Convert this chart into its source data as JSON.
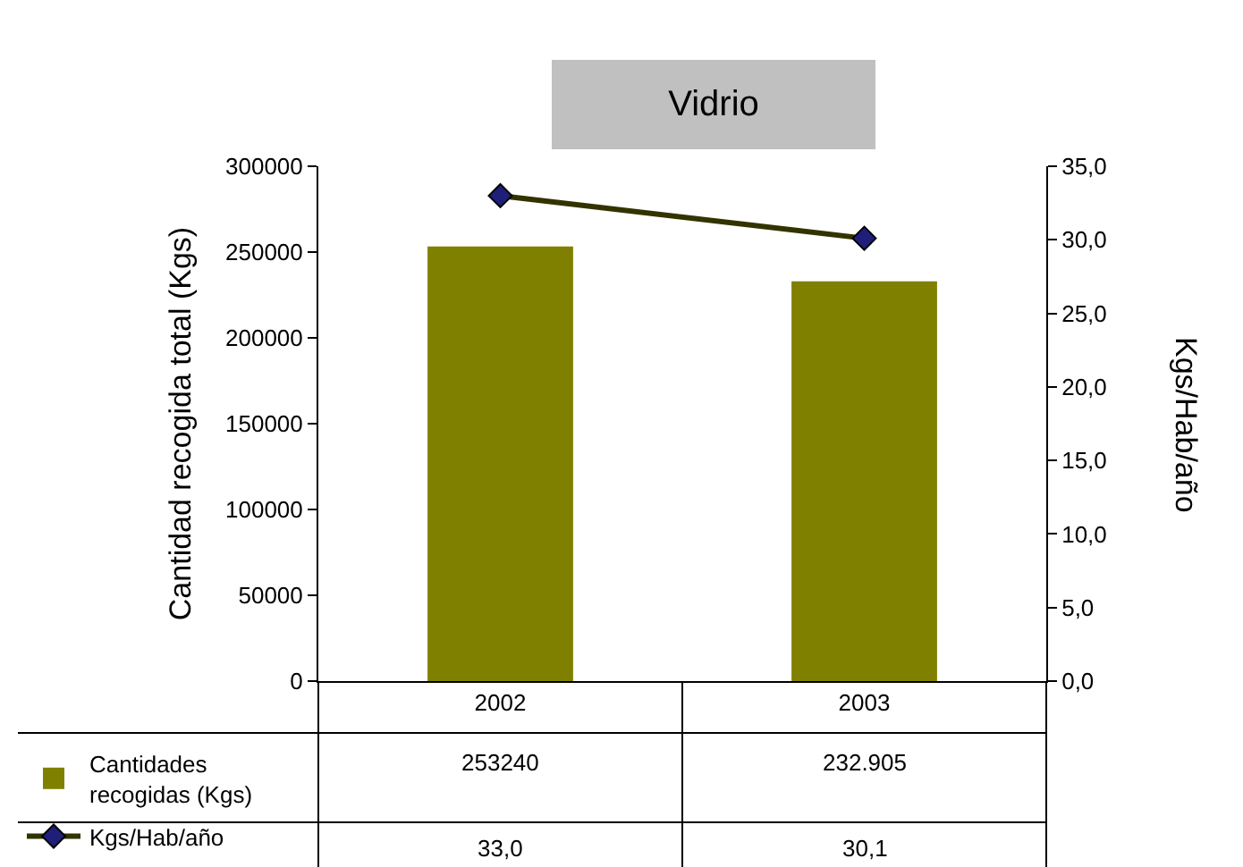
{
  "chart_data": {
    "type": "bar",
    "title": "Vidrio",
    "categories": [
      "2002",
      "2003"
    ],
    "series": [
      {
        "name": "Cantidades recogidas (Kgs)",
        "color": "#808000",
        "values": [
          253240,
          232905
        ],
        "value_labels": [
          "253240",
          "232.905"
        ]
      },
      {
        "name": "Kgs/Hab/año",
        "type": "line",
        "axis": "y2",
        "color": "#333300",
        "values": [
          33.0,
          30.1
        ],
        "value_labels": [
          "33,0",
          "30,1"
        ]
      }
    ],
    "ylabel": "Cantidad recogida total (Kgs)",
    "y2label": "Kgs/Hab/año",
    "ylim": [
      0,
      300000
    ],
    "yticks": [
      0,
      50000,
      100000,
      150000,
      200000,
      250000,
      300000
    ],
    "y2lim": [
      0,
      35
    ],
    "y2ticks": [
      {
        "value": 0,
        "label": "0,0"
      },
      {
        "value": 5,
        "label": "5,0"
      },
      {
        "value": 10,
        "label": "10,0"
      },
      {
        "value": 15,
        "label": "15,0"
      },
      {
        "value": 20,
        "label": "20,0"
      },
      {
        "value": 25,
        "label": "25,0"
      },
      {
        "value": 30,
        "label": "30,0"
      },
      {
        "value": 35,
        "label": "35,0"
      }
    ],
    "marker": "diamond",
    "legend": "bottom"
  }
}
